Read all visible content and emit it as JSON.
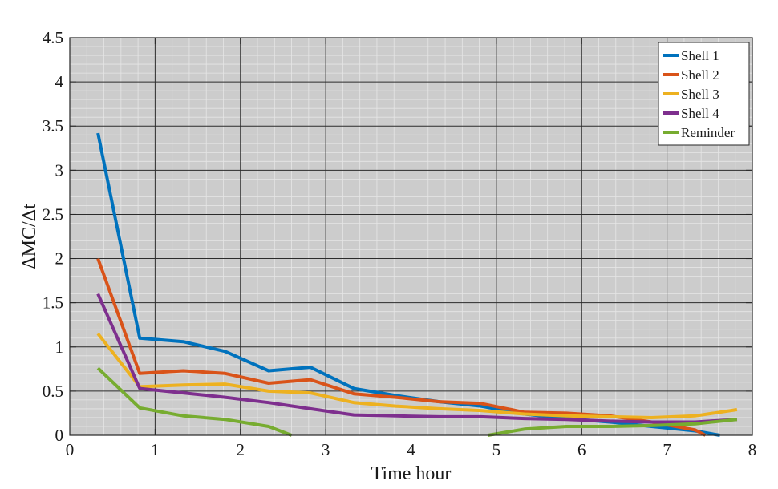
{
  "chart_data": {
    "type": "line",
    "title": "",
    "xlabel": "Time hour",
    "ylabel": "ΔMC/Δt",
    "xlim": [
      0,
      8
    ],
    "ylim": [
      0,
      4.5
    ],
    "xticks": [
      0,
      1,
      2,
      3,
      4,
      5,
      6,
      7,
      8
    ],
    "yticks": [
      0,
      0.5,
      1,
      1.5,
      2,
      2.5,
      3,
      3.5,
      4,
      4.5
    ],
    "ytick_labels": [
      "0",
      "0.5",
      "1",
      "1.5",
      "2",
      "2.5",
      "3",
      "3.5",
      "4",
      "4.5"
    ],
    "grid": true,
    "legend_position": "top-right",
    "colors": {
      "plot_background": "#cccccc",
      "grid_major": "#2b2b2b",
      "grid_minor": "#e6e6e6"
    },
    "series": [
      {
        "name": "Shell 1",
        "color": "#0072BD",
        "points": [
          [
            0.33,
            3.42
          ],
          [
            0.82,
            1.1
          ],
          [
            1.33,
            1.06
          ],
          [
            1.82,
            0.95
          ],
          [
            2.33,
            0.73
          ],
          [
            2.82,
            0.77
          ],
          [
            3.33,
            0.53
          ],
          [
            3.82,
            0.45
          ],
          [
            4.33,
            0.38
          ],
          [
            4.82,
            0.33
          ],
          [
            5.33,
            0.24
          ],
          [
            5.82,
            0.19
          ],
          [
            6.33,
            0.15
          ],
          [
            6.82,
            0.1
          ],
          [
            7.33,
            0.05
          ],
          [
            7.62,
            0.0
          ]
        ]
      },
      {
        "name": "Shell 2",
        "color": "#D95319",
        "points": [
          [
            0.33,
            2.0
          ],
          [
            0.82,
            0.7
          ],
          [
            1.33,
            0.73
          ],
          [
            1.82,
            0.7
          ],
          [
            2.33,
            0.59
          ],
          [
            2.82,
            0.63
          ],
          [
            3.33,
            0.47
          ],
          [
            3.82,
            0.43
          ],
          [
            4.33,
            0.38
          ],
          [
            4.82,
            0.36
          ],
          [
            5.33,
            0.26
          ],
          [
            5.82,
            0.25
          ],
          [
            6.33,
            0.22
          ],
          [
            6.82,
            0.15
          ],
          [
            7.33,
            0.06
          ],
          [
            7.45,
            0.0
          ]
        ]
      },
      {
        "name": "Shell 3",
        "color": "#EDB120",
        "points": [
          [
            0.33,
            1.15
          ],
          [
            0.82,
            0.55
          ],
          [
            1.33,
            0.57
          ],
          [
            1.82,
            0.58
          ],
          [
            2.33,
            0.5
          ],
          [
            2.82,
            0.48
          ],
          [
            3.33,
            0.37
          ],
          [
            3.82,
            0.33
          ],
          [
            4.33,
            0.3
          ],
          [
            4.82,
            0.28
          ],
          [
            5.33,
            0.24
          ],
          [
            5.82,
            0.22
          ],
          [
            6.33,
            0.21
          ],
          [
            6.82,
            0.2
          ],
          [
            7.33,
            0.22
          ],
          [
            7.82,
            0.29
          ]
        ]
      },
      {
        "name": "Shell 4",
        "color": "#7E2F8E",
        "points": [
          [
            0.33,
            1.6
          ],
          [
            0.82,
            0.53
          ],
          [
            1.33,
            0.48
          ],
          [
            1.82,
            0.43
          ],
          [
            2.33,
            0.37
          ],
          [
            2.82,
            0.3
          ],
          [
            3.33,
            0.23
          ],
          [
            3.82,
            0.22
          ],
          [
            4.33,
            0.21
          ],
          [
            4.82,
            0.21
          ],
          [
            5.33,
            0.19
          ],
          [
            5.82,
            0.18
          ],
          [
            6.33,
            0.16
          ],
          [
            6.82,
            0.15
          ],
          [
            7.33,
            0.15
          ],
          [
            7.82,
            0.18
          ]
        ]
      },
      {
        "name": "Reminder",
        "color": "#77AC30",
        "segments": [
          [
            [
              0.33,
              0.76
            ],
            [
              0.82,
              0.31
            ],
            [
              1.33,
              0.22
            ],
            [
              1.82,
              0.18
            ],
            [
              2.33,
              0.1
            ],
            [
              2.6,
              0.0
            ]
          ],
          [
            [
              4.9,
              0.0
            ],
            [
              5.33,
              0.07
            ],
            [
              5.82,
              0.1
            ],
            [
              6.33,
              0.1
            ],
            [
              6.82,
              0.11
            ],
            [
              7.33,
              0.13
            ],
            [
              7.82,
              0.18
            ]
          ]
        ]
      }
    ]
  }
}
